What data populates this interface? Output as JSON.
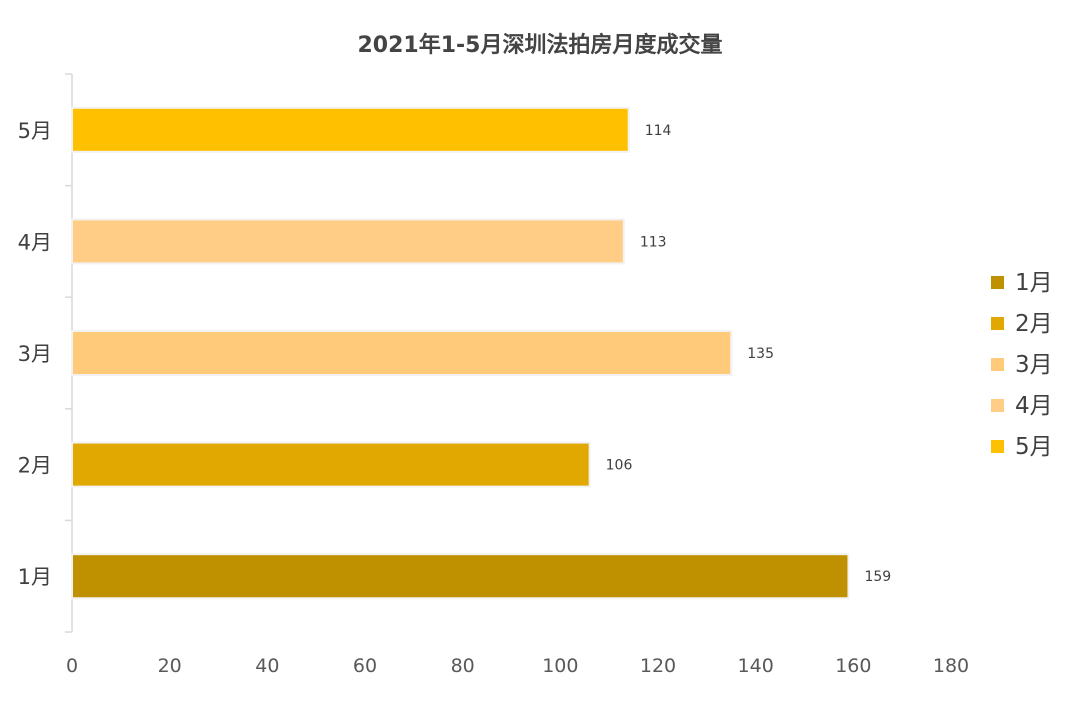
{
  "chart_data": {
    "type": "bar",
    "orientation": "horizontal",
    "title": "2021年1-5月深圳法拍房月度成交量",
    "xlabel": "",
    "ylabel": "",
    "categories": [
      "1月",
      "2月",
      "3月",
      "4月",
      "5月"
    ],
    "values": [
      159,
      106,
      135,
      113,
      114
    ],
    "colors": [
      "#BF9000",
      "#E0A800",
      "#FFCA7A",
      "#FFCD85",
      "#FFC000"
    ],
    "xlim": [
      0,
      180
    ],
    "xticks": [
      "0",
      "20",
      "40",
      "60",
      "80",
      "100",
      "120",
      "140",
      "160",
      "180"
    ],
    "grid": false,
    "legend": {
      "position": "right",
      "entries": [
        "1月",
        "2月",
        "3月",
        "4月",
        "5月"
      ]
    }
  }
}
